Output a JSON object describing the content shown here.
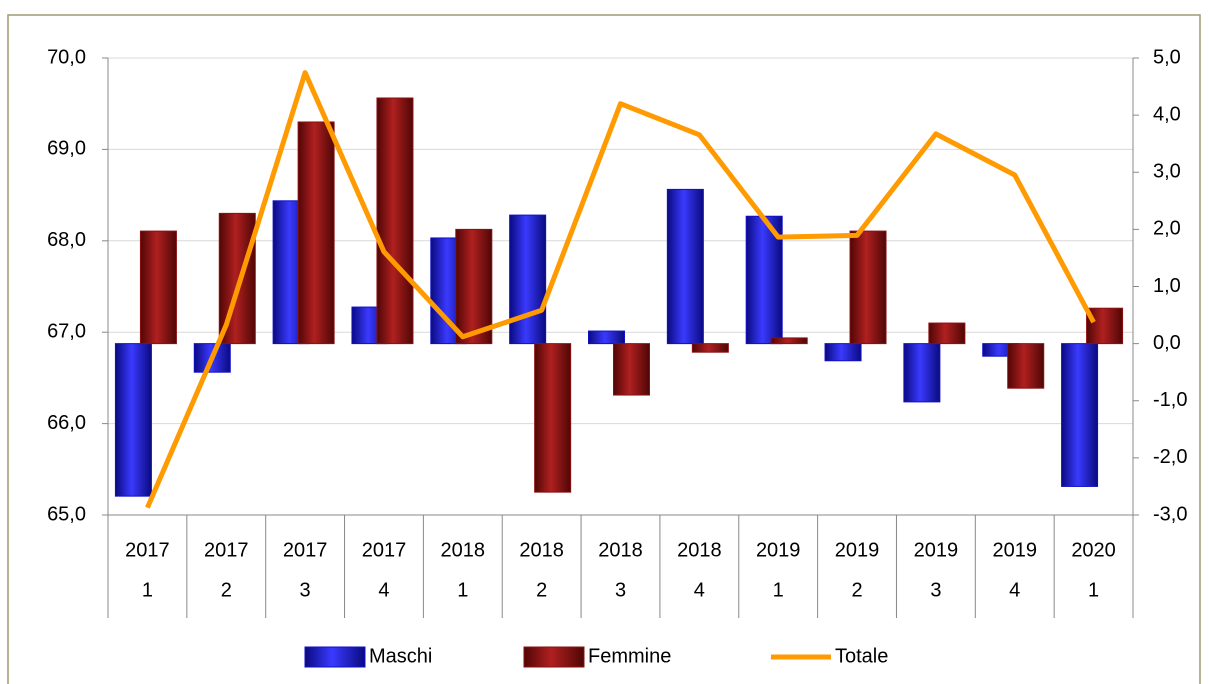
{
  "chart_data": {
    "type": "bar",
    "categories": [
      [
        "2017",
        "1"
      ],
      [
        "2017",
        "2"
      ],
      [
        "2017",
        "3"
      ],
      [
        "2017",
        "4"
      ],
      [
        "2018",
        "1"
      ],
      [
        "2018",
        "2"
      ],
      [
        "2018",
        "3"
      ],
      [
        "2018",
        "4"
      ],
      [
        "2019",
        "1"
      ],
      [
        "2019",
        "2"
      ],
      [
        "2019",
        "3"
      ],
      [
        "2019",
        "4"
      ],
      [
        "2020",
        "1"
      ]
    ],
    "series": [
      {
        "name": "Maschi",
        "type": "bar",
        "axis": "y2",
        "color": "#1010c8",
        "values": [
          -2.67,
          -0.5,
          2.5,
          0.64,
          1.85,
          2.25,
          0.22,
          2.7,
          2.23,
          -0.3,
          -1.02,
          -0.22,
          -2.5
        ]
      },
      {
        "name": "Femmine",
        "type": "bar",
        "axis": "y2",
        "color": "#8b1010",
        "values": [
          1.97,
          2.28,
          3.88,
          4.3,
          2.0,
          -2.6,
          -0.9,
          -0.15,
          0.1,
          1.97,
          0.36,
          -0.78,
          0.62
        ]
      },
      {
        "name": "Totale",
        "type": "line",
        "color": "#ff9a00",
        "values": [
          65.08,
          67.08,
          69.84,
          67.88,
          66.95,
          67.24,
          69.5,
          69.16,
          68.04,
          68.06,
          69.17,
          68.72,
          67.11
        ]
      }
    ],
    "ylim": [
      65,
      70
    ],
    "yticks": [
      {
        "value": 65,
        "label": "65,0"
      },
      {
        "value": 66,
        "label": "66,0"
      },
      {
        "value": 67,
        "label": "67,0"
      },
      {
        "value": 68,
        "label": "68,0"
      },
      {
        "value": 69,
        "label": "69,0"
      },
      {
        "value": 70,
        "label": "70,0"
      }
    ],
    "y2lim": [
      -3,
      5
    ],
    "y2ticks": [
      {
        "value": -3,
        "label": "-3,0"
      },
      {
        "value": -2,
        "label": "-2,0"
      },
      {
        "value": -1,
        "label": "-1,0"
      },
      {
        "value": 0,
        "label": "0,0"
      },
      {
        "value": 1,
        "label": "1,0"
      },
      {
        "value": 2,
        "label": "2,0"
      },
      {
        "value": 3,
        "label": "3,0"
      },
      {
        "value": 4,
        "label": "4,0"
      },
      {
        "value": 5,
        "label": "5,0"
      }
    ],
    "grid": true,
    "legend": "bottom"
  }
}
